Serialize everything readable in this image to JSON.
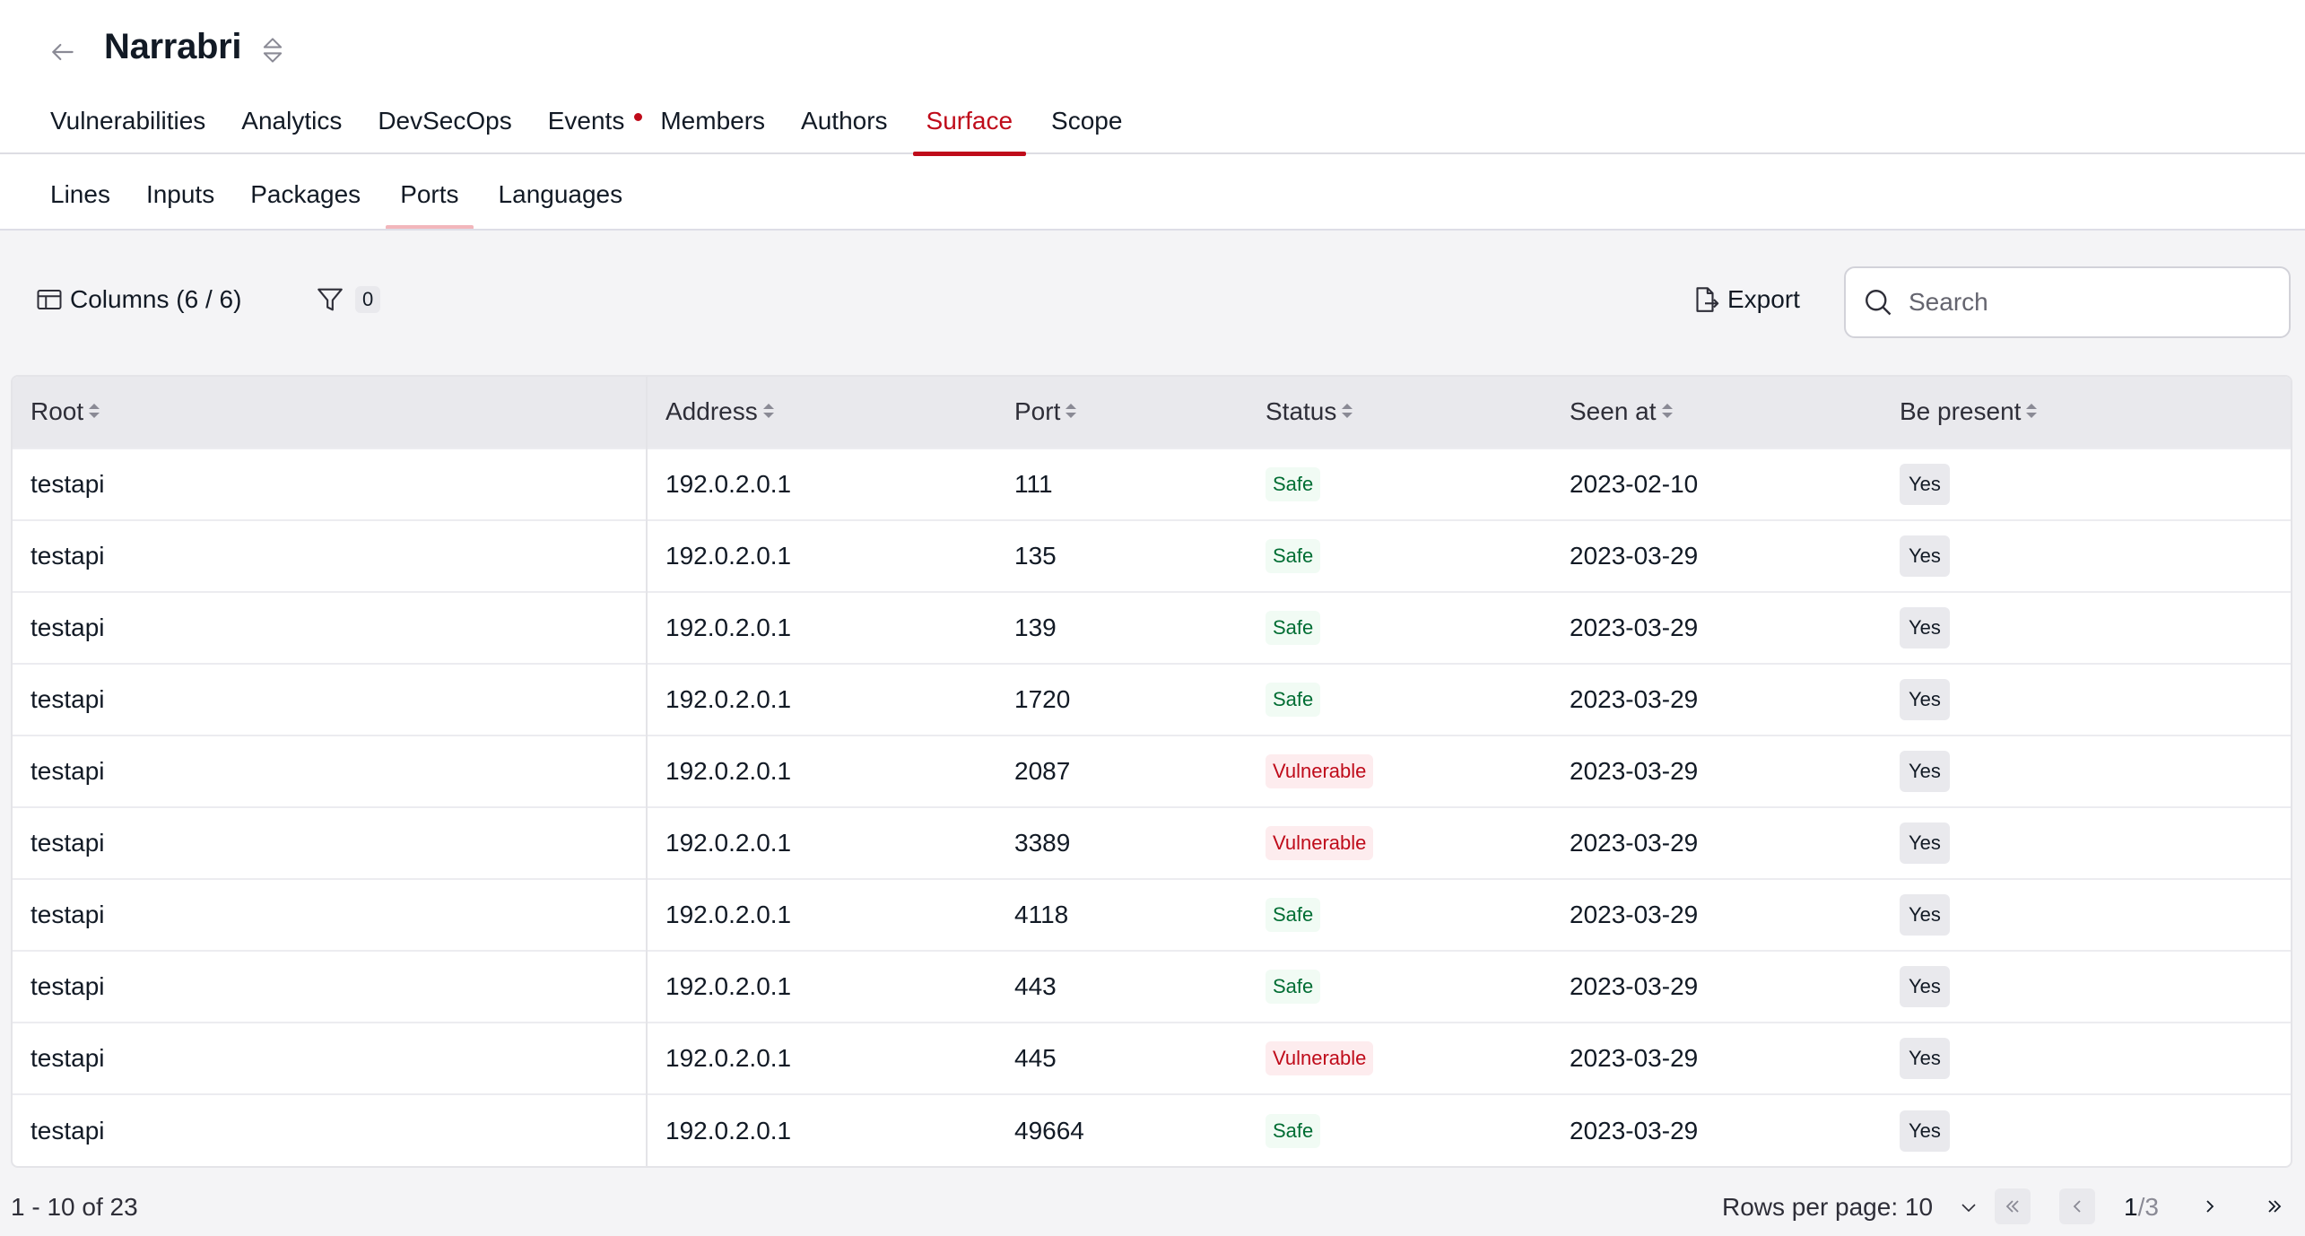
{
  "header": {
    "title": "Narrabri",
    "main_tabs": [
      {
        "label": "Vulnerabilities"
      },
      {
        "label": "Analytics"
      },
      {
        "label": "DevSecOps"
      },
      {
        "label": "Events"
      },
      {
        "label": "Members"
      },
      {
        "label": "Authors"
      },
      {
        "label": "Surface"
      },
      {
        "label": "Scope"
      }
    ],
    "active_main_tab": "Surface",
    "sub_tabs": [
      {
        "label": "Lines"
      },
      {
        "label": "Inputs"
      },
      {
        "label": "Packages"
      },
      {
        "label": "Ports"
      },
      {
        "label": "Languages"
      }
    ],
    "active_sub_tab": "Ports"
  },
  "toolbar": {
    "columns_label": "Columns (6 / 6)",
    "filter_count": "0",
    "export_label": "Export",
    "search_placeholder": "Search"
  },
  "table": {
    "columns": [
      "Root",
      "Address",
      "Port",
      "Status",
      "Seen at",
      "Be present"
    ],
    "rows": [
      {
        "root": "testapi",
        "address": "192.0.2.0.1",
        "port": "111",
        "status": "Safe",
        "seen_at": "2023-02-10",
        "be_present": "Yes"
      },
      {
        "root": "testapi",
        "address": "192.0.2.0.1",
        "port": "135",
        "status": "Safe",
        "seen_at": "2023-03-29",
        "be_present": "Yes"
      },
      {
        "root": "testapi",
        "address": "192.0.2.0.1",
        "port": "139",
        "status": "Safe",
        "seen_at": "2023-03-29",
        "be_present": "Yes"
      },
      {
        "root": "testapi",
        "address": "192.0.2.0.1",
        "port": "1720",
        "status": "Safe",
        "seen_at": "2023-03-29",
        "be_present": "Yes"
      },
      {
        "root": "testapi",
        "address": "192.0.2.0.1",
        "port": "2087",
        "status": "Vulnerable",
        "seen_at": "2023-03-29",
        "be_present": "Yes"
      },
      {
        "root": "testapi",
        "address": "192.0.2.0.1",
        "port": "3389",
        "status": "Vulnerable",
        "seen_at": "2023-03-29",
        "be_present": "Yes"
      },
      {
        "root": "testapi",
        "address": "192.0.2.0.1",
        "port": "4118",
        "status": "Safe",
        "seen_at": "2023-03-29",
        "be_present": "Yes"
      },
      {
        "root": "testapi",
        "address": "192.0.2.0.1",
        "port": "443",
        "status": "Safe",
        "seen_at": "2023-03-29",
        "be_present": "Yes"
      },
      {
        "root": "testapi",
        "address": "192.0.2.0.1",
        "port": "445",
        "status": "Vulnerable",
        "seen_at": "2023-03-29",
        "be_present": "Yes"
      },
      {
        "root": "testapi",
        "address": "192.0.2.0.1",
        "port": "49664",
        "status": "Safe",
        "seen_at": "2023-03-29",
        "be_present": "Yes"
      }
    ]
  },
  "footer": {
    "range_text": "1 - 10 of 23",
    "rows_per_page_label": "Rows per page: 10",
    "current_page": "1",
    "total_pages": "/3"
  },
  "colors": {
    "accent": "#bf0b1a",
    "safe": "#006d33",
    "vulnerable": "#bf0b1a"
  }
}
